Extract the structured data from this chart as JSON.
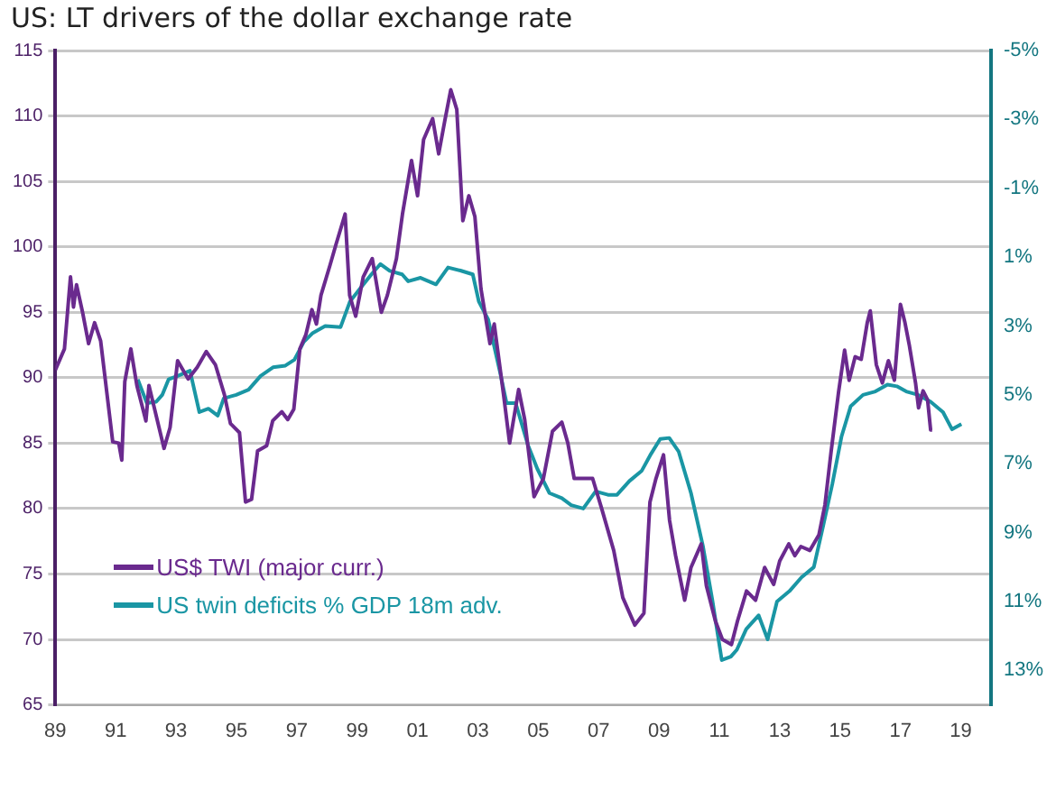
{
  "chart_data": {
    "type": "line",
    "title": "US: LT drivers of the dollar exchange rate",
    "xlim": [
      1989,
      2020
    ],
    "xticks": [
      {
        "value": 1989,
        "label": "89"
      },
      {
        "value": 1991,
        "label": "91"
      },
      {
        "value": 1993,
        "label": "93"
      },
      {
        "value": 1995,
        "label": "95"
      },
      {
        "value": 1997,
        "label": "97"
      },
      {
        "value": 1999,
        "label": "99"
      },
      {
        "value": 2001,
        "label": "01"
      },
      {
        "value": 2003,
        "label": "03"
      },
      {
        "value": 2005,
        "label": "05"
      },
      {
        "value": 2007,
        "label": "07"
      },
      {
        "value": 2009,
        "label": "09"
      },
      {
        "value": 2011,
        "label": "11"
      },
      {
        "value": 2013,
        "label": "13"
      },
      {
        "value": 2015,
        "label": "15"
      },
      {
        "value": 2017,
        "label": "17"
      },
      {
        "value": 2019,
        "label": "19"
      }
    ],
    "ylim": [
      65,
      115
    ],
    "yticks": [
      65,
      70,
      75,
      80,
      85,
      90,
      95,
      100,
      105,
      110,
      115
    ],
    "y2lim": [
      14,
      -5
    ],
    "y2ticks": [
      {
        "value": -5,
        "label": "-5%"
      },
      {
        "value": -3,
        "label": "-3%"
      },
      {
        "value": -1,
        "label": "-1%"
      },
      {
        "value": 1,
        "label": "1%"
      },
      {
        "value": 3,
        "label": "3%"
      },
      {
        "value": 5,
        "label": "5%"
      },
      {
        "value": 7,
        "label": "7%"
      },
      {
        "value": 9,
        "label": "9%"
      },
      {
        "value": 11,
        "label": "11%"
      },
      {
        "value": 13,
        "label": "13%"
      }
    ],
    "grid": "y",
    "legend": "bottom left",
    "line_style": "solid",
    "marker": "none",
    "series": [
      {
        "name": "US$ TWI (major curr.)",
        "color": "#6a2a8e",
        "x": [
          1989,
          1989.3,
          1989.5,
          1989.6,
          1989.7,
          1989.9,
          1990.1,
          1990.3,
          1990.5,
          1990.9,
          1991.1,
          1991.2,
          1991.3,
          1991.5,
          1991.7,
          1992,
          1992.1,
          1992.6,
          1992.8,
          1993.05,
          1993.4,
          1993.7,
          1994,
          1994.3,
          1994.6,
          1994.8,
          1995.1,
          1995.3,
          1995.5,
          1995.7,
          1996,
          1996.2,
          1996.5,
          1996.7,
          1996.9,
          1997.1,
          1997.3,
          1997.5,
          1997.65,
          1997.8,
          1998.1,
          1998.3,
          1998.6,
          1998.75,
          1998.95,
          1999.2,
          1999.5,
          1999.8,
          2000,
          2000.3,
          2000.5,
          2000.8,
          2001,
          2001.2,
          2001.5,
          2001.7,
          2001.9,
          2002.1,
          2002.3,
          2002.5,
          2002.7,
          2002.9,
          2003.1,
          2003.4,
          2003.54,
          2003.85,
          2004.05,
          2004.35,
          2004.55,
          2004.86,
          2005.17,
          2005.47,
          2005.78,
          2005.98,
          2006.19,
          2006.8,
          2007.1,
          2007.5,
          2007.8,
          2008.2,
          2008.5,
          2008.7,
          2008.9,
          2009.15,
          2009.35,
          2009.55,
          2009.85,
          2010.06,
          2010.4,
          2010.57,
          2010.87,
          2011.1,
          2011.4,
          2011.6,
          2011.9,
          2012.2,
          2012.5,
          2012.8,
          2013,
          2013.3,
          2013.5,
          2013.7,
          2014,
          2014.3,
          2014.5,
          2014.7,
          2014.95,
          2015.15,
          2015.3,
          2015.5,
          2015.7,
          2015.9,
          2016,
          2016.2,
          2016.4,
          2016.6,
          2016.8,
          2017,
          2017.15,
          2017.3,
          2017.5,
          2017.6,
          2017.75,
          2017.9,
          2018,
          2018.05
        ],
        "values": [
          90.6,
          92.2,
          97.7,
          95.4,
          97.1,
          95,
          92.6,
          94.2,
          92.8,
          85.1,
          85,
          83.7,
          89.7,
          92.2,
          89.4,
          86.7,
          89.4,
          84.6,
          86.2,
          91.3,
          89.9,
          90.8,
          92,
          91,
          88.7,
          86.5,
          85.8,
          80.5,
          80.7,
          84.4,
          84.8,
          86.7,
          87.4,
          86.8,
          87.6,
          92.2,
          93.3,
          95.2,
          94.1,
          96.3,
          98.6,
          100.2,
          102.5,
          96.3,
          94.7,
          97.7,
          99.1,
          95,
          96.3,
          99.1,
          102.5,
          106.6,
          103.9,
          108.2,
          109.8,
          107.1,
          109.6,
          112,
          110.5,
          102,
          103.9,
          102.3,
          96.8,
          92.6,
          94.1,
          88.7,
          85,
          89.1,
          86.8,
          80.9,
          82.3,
          85.9,
          86.6,
          85,
          82.3,
          82.3,
          80,
          76.8,
          73.2,
          71.1,
          72,
          80.5,
          82.3,
          84.1,
          79.1,
          76.4,
          73,
          75.5,
          77.3,
          74.1,
          71.4,
          70,
          69.6,
          71.4,
          73.7,
          73,
          75.5,
          74.2,
          76,
          77.3,
          76.4,
          77.1,
          76.8,
          78,
          80.3,
          84.3,
          88.9,
          92.1,
          89.8,
          91.6,
          91.4,
          94.2,
          95.1,
          91,
          89.6,
          91.3,
          89.8,
          95.6,
          94.2,
          92.4,
          89.6,
          87.7,
          89,
          88.3,
          86,
          86
        ]
      },
      {
        "name": "US twin deficits % GDP 18m adv.",
        "color": "#1a96a4",
        "axis": "y2",
        "x": [
          1991.73,
          1992.03,
          1992.34,
          1992.54,
          1992.75,
          1993.05,
          1993.46,
          1993.77,
          1994.07,
          1994.38,
          1994.58,
          1994.99,
          1995.4,
          1995.8,
          1996.21,
          1996.62,
          1996.92,
          1997.23,
          1997.53,
          1997.94,
          1998.45,
          1998.76,
          1999.06,
          1999.47,
          1999.77,
          2000.08,
          2000.49,
          2000.69,
          2001.1,
          2001.61,
          2002.01,
          2002.42,
          2002.83,
          2003.03,
          2003.34,
          2003.74,
          2003.95,
          2004.25,
          2004.66,
          2004.97,
          2005.37,
          2005.78,
          2006.09,
          2006.49,
          2006.9,
          2007.31,
          2007.61,
          2008.02,
          2008.43,
          2008.73,
          2009.04,
          2009.34,
          2009.65,
          2010.06,
          2010.46,
          2010.77,
          2011.08,
          2011.38,
          2011.58,
          2011.89,
          2012.3,
          2012.6,
          2012.91,
          2013.32,
          2013.72,
          2014.13,
          2014.44,
          2014.74,
          2015.05,
          2015.35,
          2015.76,
          2016.17,
          2016.57,
          2016.88,
          2017.19,
          2017.59,
          2018,
          2018.41,
          2018.71,
          2019.02
        ],
        "values": [
          4.55,
          5.24,
          5.2,
          5,
          4.55,
          4.45,
          4.3,
          5.5,
          5.4,
          5.6,
          5.1,
          5,
          4.85,
          4.45,
          4.2,
          4.15,
          3.98,
          3.46,
          3.2,
          3,
          3.03,
          2.29,
          1.95,
          1.5,
          1.2,
          1.4,
          1.5,
          1.7,
          1.6,
          1.79,
          1.3,
          1.39,
          1.5,
          2.29,
          2.81,
          4.37,
          5.24,
          5.24,
          6.46,
          7.15,
          7.85,
          8,
          8.2,
          8.3,
          7.8,
          7.9,
          7.9,
          7.5,
          7.2,
          6.72,
          6.28,
          6.25,
          6.64,
          7.85,
          9.41,
          10.97,
          12.7,
          12.6,
          12.4,
          11.8,
          11.4,
          12.1,
          11,
          10.7,
          10.3,
          10,
          8.8,
          7.6,
          6.2,
          5.33,
          5,
          4.9,
          4.7,
          4.75,
          4.9,
          5,
          5.2,
          5.5,
          6,
          5.85
        ]
      }
    ]
  }
}
